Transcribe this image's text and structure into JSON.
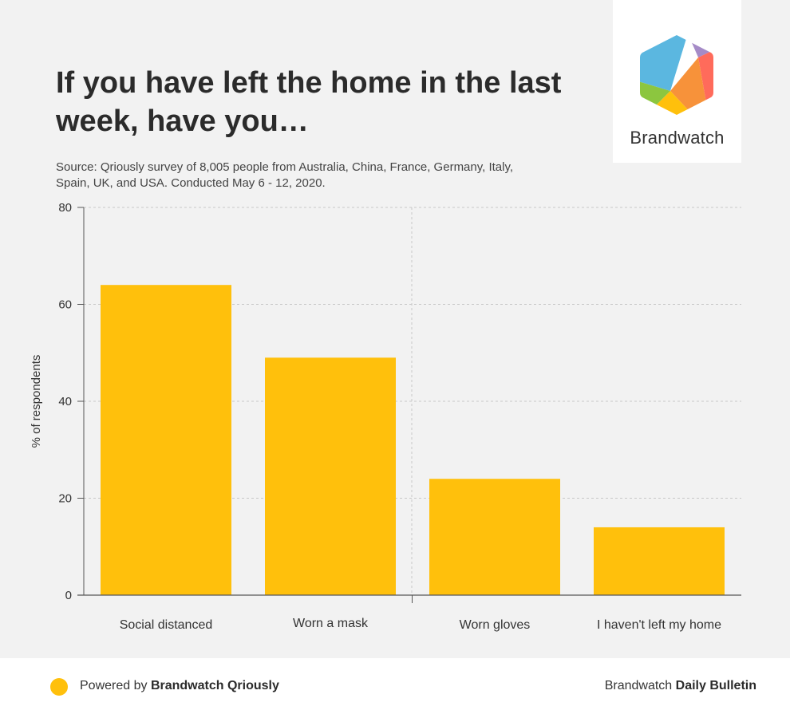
{
  "header": {
    "title": "If you have left the home in the last week, have you…",
    "subtitle": "Source: Qriously survey of 8,005 people from Australia, China, France, Germany, Italy, Spain, UK, and USA. Conducted May 6 - 12, 2020."
  },
  "logo": {
    "name": "Brandwatch",
    "colors": [
      "#5bb7e0",
      "#a58bc7",
      "#ff6b5b",
      "#f7923a",
      "#ffc00c",
      "#8cc63f"
    ]
  },
  "footer": {
    "powered_prefix": "Powered by ",
    "powered_brand": "Brandwatch Qriously",
    "right_prefix": "Brandwatch ",
    "right_brand": "Daily Bulletin",
    "dot_color": "#ffc00c"
  },
  "chart_data": {
    "type": "bar",
    "categories": [
      "Social distanced",
      "Worn a mask",
      "Worn gloves",
      "I haven't left my home"
    ],
    "values": [
      64,
      49,
      24,
      14
    ],
    "title": "",
    "xlabel": "",
    "ylabel": "% of respondents",
    "ylim": [
      0,
      80
    ],
    "yticks": [
      0,
      20,
      40,
      60,
      80
    ],
    "grid": true,
    "bar_color": "#ffc00c"
  }
}
